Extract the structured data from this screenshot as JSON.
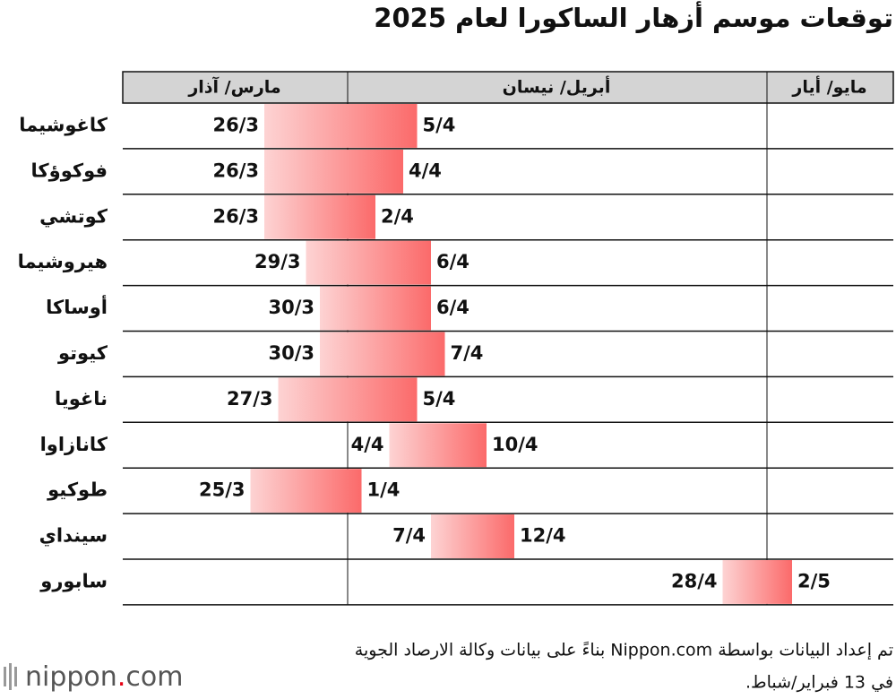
{
  "chart_data": {
    "type": "gantt",
    "title": "توقعات موسم أزهار الساكورا لعام 2025",
    "columns": [
      "مارس/ آذار",
      "أبريل/ نيسان",
      "مايو/ أيار"
    ],
    "categories": [
      "كاغوشيما",
      "فوكوؤكا",
      "كوتشي",
      "هيروشيما",
      "أوساكا",
      "كيوتو",
      "ناغويا",
      "كانازاوا",
      "طوكيو",
      "سينداي",
      "سابورو"
    ],
    "start": [
      "26/3",
      "26/3",
      "26/3",
      "29/3",
      "30/3",
      "30/3",
      "27/3",
      "4/4",
      "25/3",
      "7/4",
      "28/4"
    ],
    "end": [
      "5/4",
      "4/4",
      "2/4",
      "6/4",
      "6/4",
      "7/4",
      "5/4",
      "10/4",
      "1/4",
      "12/4",
      "2/5"
    ],
    "color_from": "#fdd3d3",
    "color_to": "#fb6a6a",
    "footer": [
      "تم إعداد البيانات بواسطة Nippon.com بناءً على بيانات وكالة الارصاد الجوية",
      "في 13 فبراير/شباط."
    ],
    "logo": [
      "nippon",
      ".",
      "com"
    ]
  }
}
